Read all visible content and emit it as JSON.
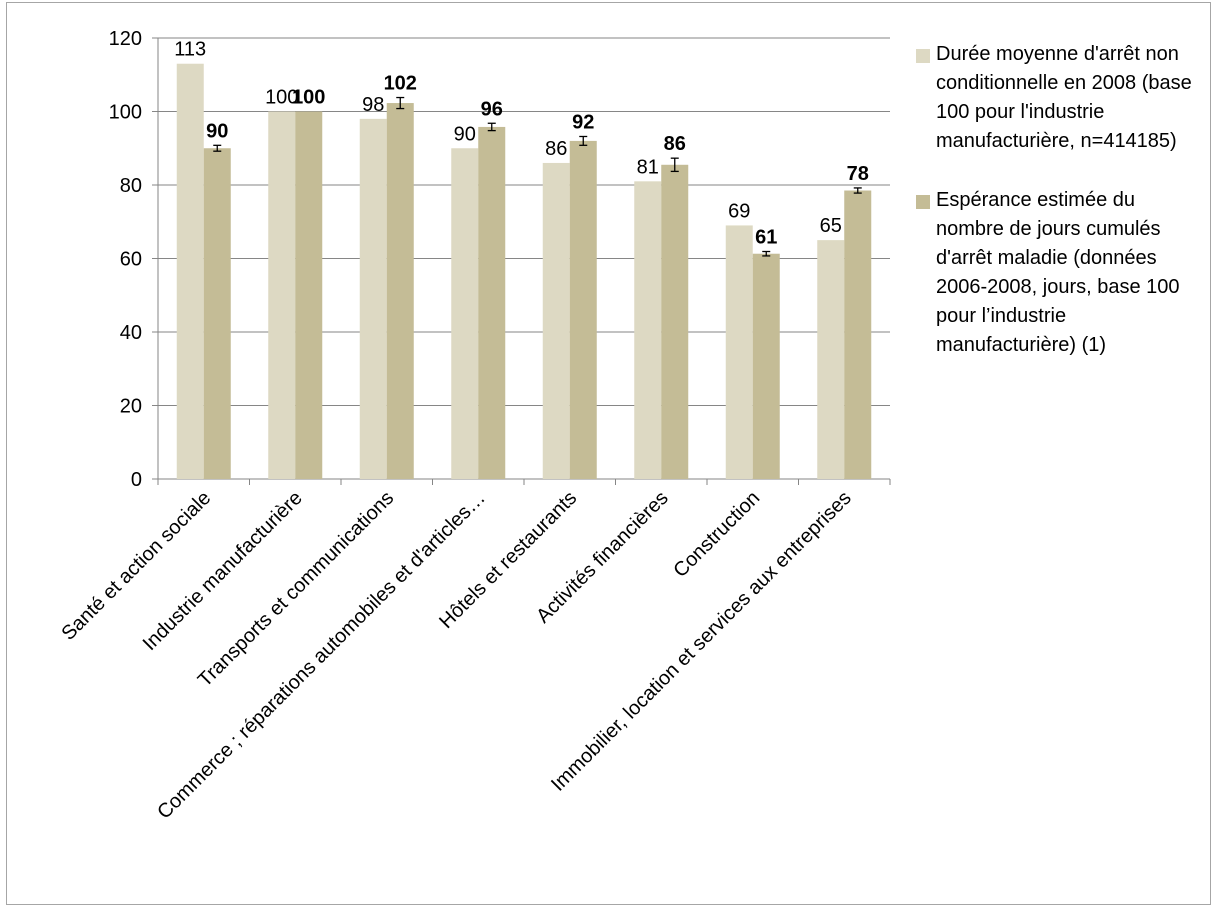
{
  "chart_data": {
    "type": "bar",
    "categories": [
      "Santé et action sociale",
      "Industrie manufacturière",
      "Transports et communications",
      "Commerce ; réparations automobiles et d'articles…",
      "Hôtels et restaurants",
      "Activités financières",
      "Construction",
      "Immobilier, location et services aux entreprises"
    ],
    "series": [
      {
        "name": "Durée moyenne d'arrêt non conditionnelle en 2008 (base 100 pour l'industrie manufacturière, n=414185)",
        "values": [
          113,
          100,
          98,
          90,
          86,
          81,
          69,
          65
        ],
        "labels": [
          "113",
          "100",
          "98",
          "90",
          "86",
          "81",
          "69",
          "65"
        ],
        "color": "#ddd9c3",
        "label_bold": false
      },
      {
        "name": "Espérance estimée du nombre de jours cumulés d'arrêt maladie (données 2006-2008, jours, base 100 pour l’industrie manufacturière) (1)",
        "values": [
          90,
          100,
          102.3,
          95.8,
          92,
          85.5,
          61.3,
          78.5
        ],
        "labels": [
          "90",
          "100",
          "102",
          "96",
          "92",
          "86",
          "61",
          "78"
        ],
        "error": [
          0.8,
          0,
          1.5,
          1.0,
          1.2,
          1.8,
          0.6,
          0.7
        ],
        "color": "#c4bc96",
        "label_bold": true
      }
    ],
    "ylim": [
      0,
      120
    ],
    "yticks": [
      0,
      20,
      40,
      60,
      80,
      100,
      120
    ],
    "grid": true,
    "legend": "right",
    "title": "",
    "xlabel": "",
    "ylabel": ""
  }
}
